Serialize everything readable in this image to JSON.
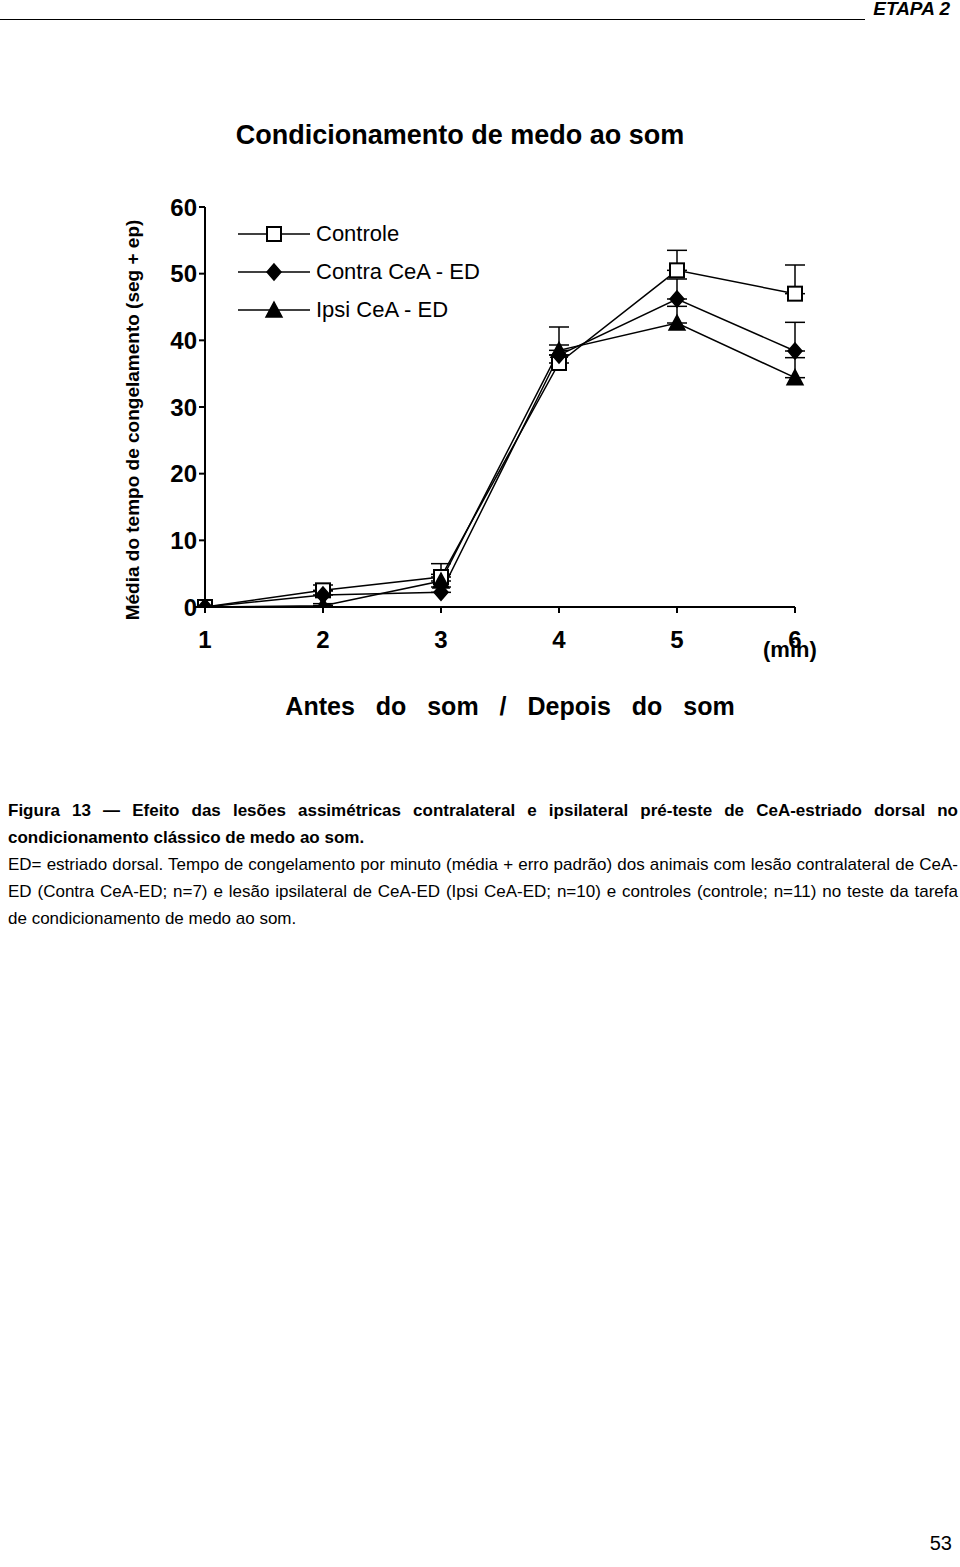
{
  "header": "ETAPA 2",
  "page_number": "53",
  "chart_data": {
    "type": "line",
    "title": "Condicionamento de medo ao som",
    "y_label": "Média do tempo de congelamento (seg + ep)",
    "x_label": "Antes do som / Depois do som",
    "annotations": [
      "(min)"
    ],
    "categories": [
      "1",
      "2",
      "3",
      "4",
      "5",
      "6"
    ],
    "ylim": [
      0,
      60
    ],
    "yticks": [
      0,
      10,
      20,
      30,
      40,
      50,
      60
    ],
    "grid": false,
    "legend": "top-left",
    "series": [
      {
        "name": "Controle",
        "color": "#000000",
        "marker": "square-open",
        "line_style": "solid",
        "values": [
          0,
          2.5,
          4.5,
          36.6,
          50.5,
          47
        ],
        "errors": [
          0,
          0.8,
          2,
          1.2,
          3,
          4.3
        ]
      },
      {
        "name": "Contra CeA - ED",
        "color": "#000000",
        "marker": "diamond",
        "line_style": "solid",
        "values": [
          0,
          1.8,
          2.2,
          37.8,
          46.2,
          38.4
        ],
        "errors": [
          0,
          0.6,
          0.8,
          1.5,
          3,
          4.3
        ]
      },
      {
        "name": "Ipsi CeA - ED",
        "color": "#000000",
        "marker": "triangle",
        "line_style": "solid",
        "values": [
          0,
          0.2,
          3.9,
          38.5,
          42.6,
          34.4
        ],
        "errors": [
          0,
          0.3,
          1,
          3.5,
          2.5,
          3
        ]
      }
    ]
  },
  "caption": {
    "title": "Figura 13 — Efeito das lesões assimétricas contralateral e ipsilateral pré-teste de CeA-estriado dorsal no condicionamento clássico de medo ao som.",
    "text": "ED= estriado dorsal. Tempo de congelamento por minuto (média + erro padrão) dos animais com lesão contralateral de CeA-ED (Contra CeA-ED; n=7) e lesão ipsilateral de CeA-ED (Ipsi CeA-ED; n=10) e controles (controle; n=11) no teste da tarefa de condicionamento de medo ao som."
  }
}
